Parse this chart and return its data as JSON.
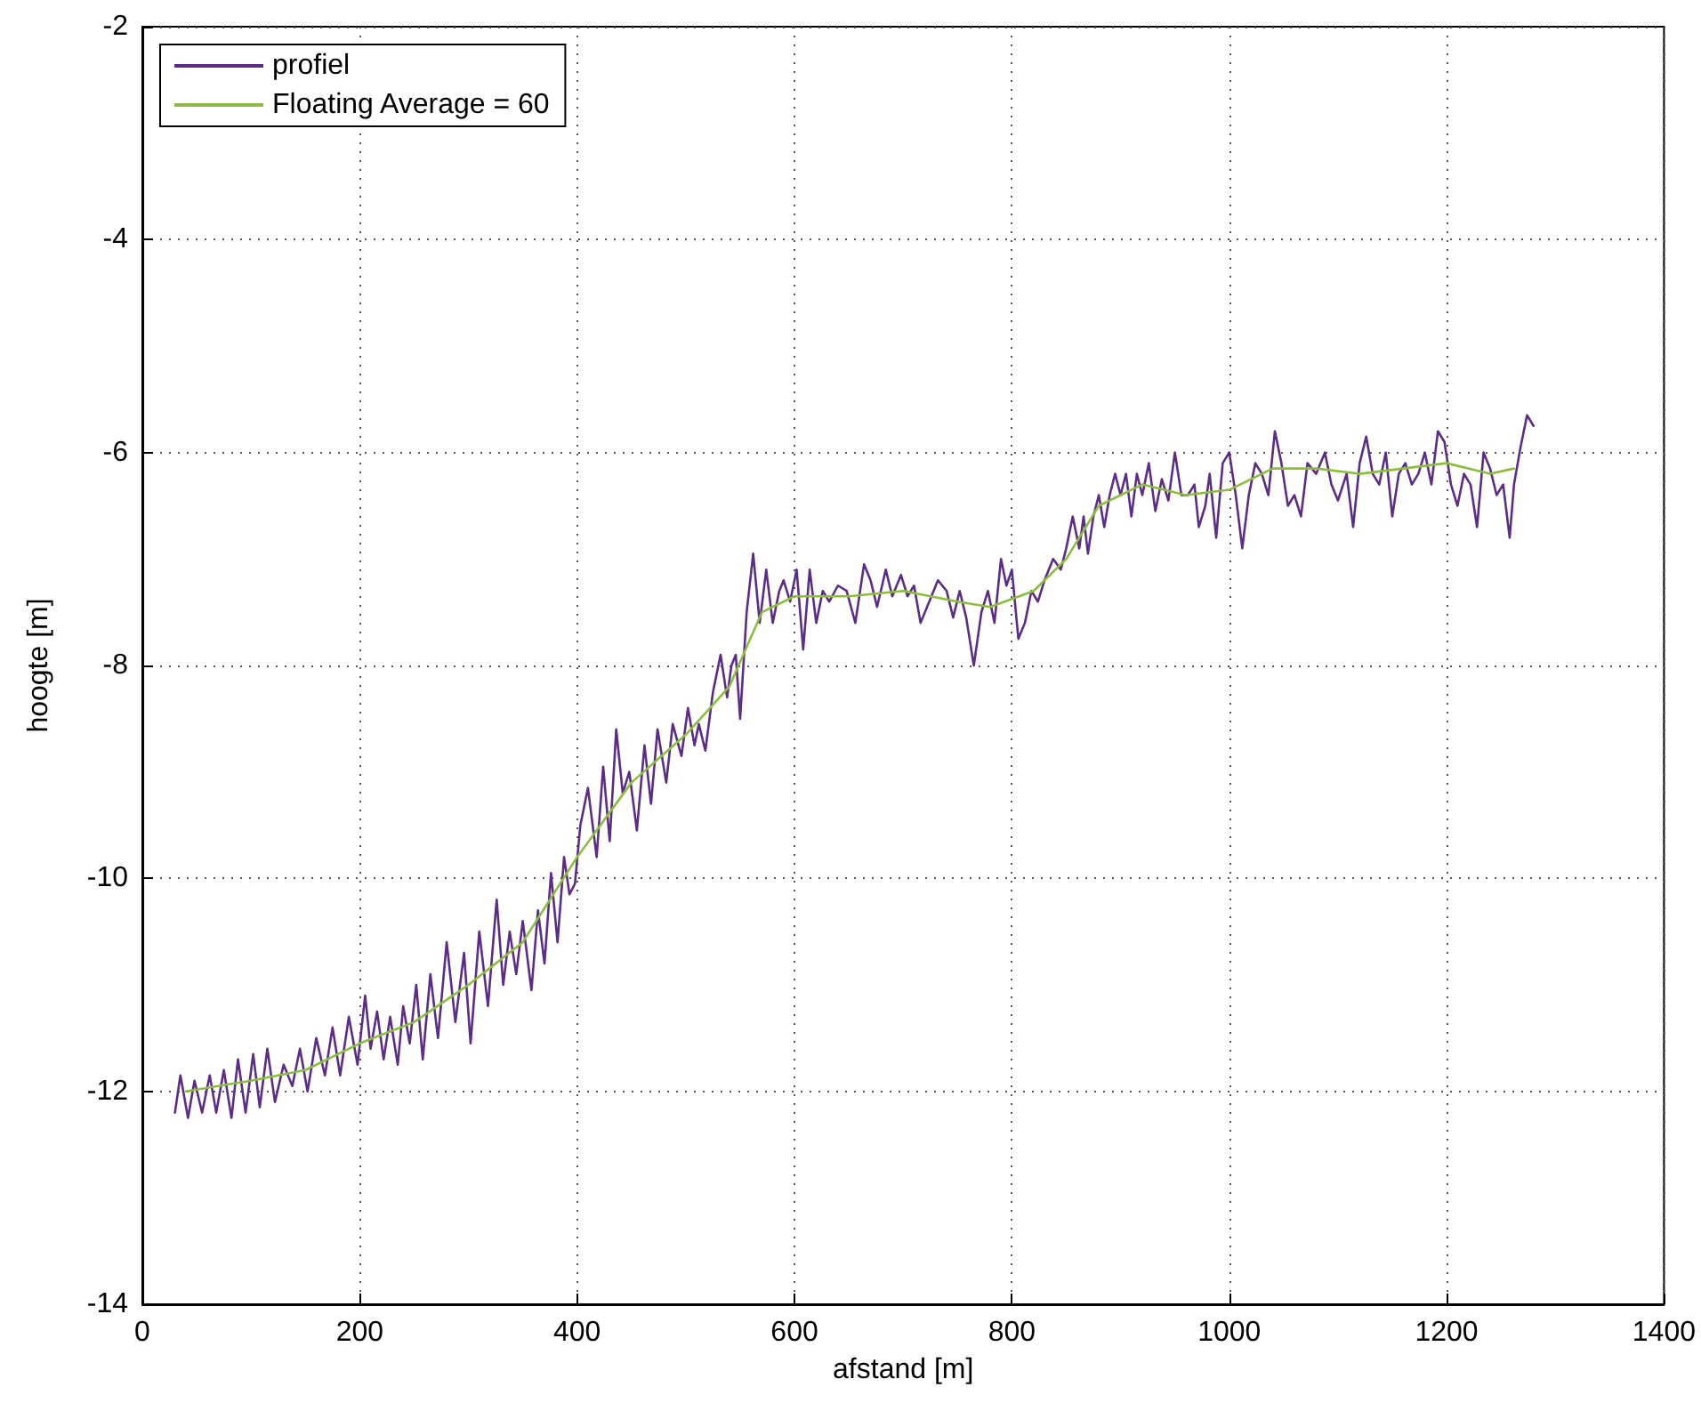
{
  "chart_data": {
    "type": "line",
    "xlabel": "afstand [m]",
    "ylabel": "hoogte [m]",
    "xlim": [
      0,
      1400
    ],
    "xticks": [
      0,
      200,
      400,
      600,
      800,
      1000,
      1200,
      1400
    ],
    "ylim": [
      -14,
      -2
    ],
    "yticks": [
      -14,
      -12,
      -10,
      -8,
      -6,
      -4,
      -2
    ],
    "grid": true,
    "legend": "top left",
    "marker": "none",
    "line_style": "solid",
    "series": [
      {
        "name": "profiel",
        "color": "#5b2d86",
        "x": [
          30,
          35,
          42,
          48,
          55,
          62,
          68,
          75,
          82,
          88,
          95,
          102,
          108,
          115,
          122,
          130,
          138,
          145,
          152,
          160,
          168,
          175,
          182,
          190,
          198,
          205,
          210,
          216,
          222,
          228,
          235,
          240,
          246,
          252,
          258,
          265,
          272,
          280,
          288,
          296,
          302,
          310,
          318,
          326,
          332,
          338,
          344,
          350,
          358,
          364,
          370,
          376,
          382,
          388,
          393,
          398,
          403,
          410,
          418,
          424,
          430,
          436,
          442,
          448,
          455,
          462,
          468,
          474,
          482,
          488,
          496,
          502,
          508,
          512,
          518,
          525,
          532,
          538,
          542,
          546,
          550,
          556,
          562,
          568,
          574,
          580,
          586,
          590,
          596,
          602,
          608,
          614,
          620,
          626,
          632,
          640,
          648,
          656,
          664,
          670,
          676,
          684,
          690,
          698,
          704,
          710,
          716,
          724,
          732,
          740,
          746,
          752,
          758,
          765,
          772,
          778,
          784,
          790,
          795,
          800,
          806,
          812,
          818,
          824,
          830,
          838,
          845,
          850,
          856,
          862,
          866,
          870,
          875,
          880,
          885,
          890,
          895,
          900,
          905,
          910,
          915,
          920,
          926,
          932,
          938,
          944,
          950,
          956,
          962,
          968,
          972,
          978,
          982,
          988,
          994,
          1000,
          1006,
          1012,
          1018,
          1024,
          1030,
          1036,
          1042,
          1048,
          1054,
          1060,
          1066,
          1072,
          1080,
          1088,
          1094,
          1100,
          1108,
          1114,
          1120,
          1126,
          1132,
          1138,
          1144,
          1150,
          1156,
          1162,
          1168,
          1174,
          1180,
          1186,
          1192,
          1198,
          1204,
          1210,
          1216,
          1222,
          1228,
          1234,
          1240,
          1246,
          1252,
          1258,
          1262,
          1268,
          1274,
          1280
        ],
        "values": [
          -12.2,
          -11.85,
          -12.25,
          -11.9,
          -12.2,
          -11.85,
          -12.2,
          -11.8,
          -12.25,
          -11.7,
          -12.2,
          -11.65,
          -12.15,
          -11.6,
          -12.1,
          -11.75,
          -11.95,
          -11.6,
          -12.0,
          -11.5,
          -11.85,
          -11.4,
          -11.85,
          -11.3,
          -11.75,
          -11.1,
          -11.6,
          -11.25,
          -11.7,
          -11.3,
          -11.75,
          -11.2,
          -11.55,
          -11.0,
          -11.7,
          -10.9,
          -11.5,
          -10.6,
          -11.35,
          -10.7,
          -11.55,
          -10.5,
          -11.2,
          -10.2,
          -11.0,
          -10.5,
          -10.9,
          -10.4,
          -11.05,
          -10.3,
          -10.8,
          -9.95,
          -10.6,
          -9.8,
          -10.15,
          -10.05,
          -9.5,
          -9.15,
          -9.8,
          -8.95,
          -9.65,
          -8.6,
          -9.2,
          -9.0,
          -9.55,
          -8.75,
          -9.3,
          -8.6,
          -9.1,
          -8.55,
          -8.85,
          -8.4,
          -8.75,
          -8.55,
          -8.8,
          -8.25,
          -7.9,
          -8.3,
          -8.0,
          -7.9,
          -8.5,
          -7.5,
          -6.95,
          -7.6,
          -7.1,
          -7.6,
          -7.3,
          -7.2,
          -7.4,
          -7.1,
          -7.85,
          -7.1,
          -7.6,
          -7.3,
          -7.4,
          -7.25,
          -7.3,
          -7.6,
          -7.05,
          -7.2,
          -7.45,
          -7.1,
          -7.35,
          -7.15,
          -7.35,
          -7.25,
          -7.6,
          -7.4,
          -7.2,
          -7.3,
          -7.55,
          -7.3,
          -7.55,
          -8.0,
          -7.5,
          -7.3,
          -7.6,
          -7.0,
          -7.25,
          -7.1,
          -7.75,
          -7.6,
          -7.3,
          -7.4,
          -7.2,
          -7.0,
          -7.1,
          -6.9,
          -6.6,
          -6.9,
          -6.6,
          -6.95,
          -6.6,
          -6.4,
          -6.7,
          -6.4,
          -6.2,
          -6.4,
          -6.2,
          -6.6,
          -6.2,
          -6.4,
          -6.1,
          -6.55,
          -6.25,
          -6.45,
          -6.0,
          -6.4,
          -6.4,
          -6.3,
          -6.7,
          -6.5,
          -6.2,
          -6.8,
          -6.1,
          -6.0,
          -6.4,
          -6.9,
          -6.4,
          -6.1,
          -6.2,
          -6.4,
          -5.8,
          -6.1,
          -6.5,
          -6.4,
          -6.6,
          -6.1,
          -6.2,
          -6.0,
          -6.3,
          -6.45,
          -6.2,
          -6.7,
          -6.1,
          -5.85,
          -6.2,
          -6.3,
          -6.0,
          -6.6,
          -6.2,
          -6.1,
          -6.3,
          -6.2,
          -6.0,
          -6.3,
          -5.8,
          -5.9,
          -6.3,
          -6.5,
          -6.2,
          -6.3,
          -6.7,
          -6.0,
          -6.15,
          -6.4,
          -6.3,
          -6.8,
          -6.3,
          -5.95,
          -5.65,
          -5.75
        ]
      },
      {
        "name": "Floating Average = 60",
        "color": "#8cbd3f",
        "x": [
          40,
          100,
          150,
          200,
          250,
          300,
          350,
          400,
          450,
          500,
          540,
          570,
          600,
          650,
          700,
          750,
          780,
          820,
          850,
          880,
          920,
          960,
          1000,
          1040,
          1080,
          1120,
          1160,
          1200,
          1240,
          1262
        ],
        "values": [
          -12.0,
          -11.9,
          -11.8,
          -11.55,
          -11.35,
          -11.0,
          -10.6,
          -9.8,
          -9.1,
          -8.65,
          -8.2,
          -7.5,
          -7.35,
          -7.35,
          -7.3,
          -7.4,
          -7.45,
          -7.3,
          -7.0,
          -6.5,
          -6.3,
          -6.4,
          -6.35,
          -6.15,
          -6.15,
          -6.2,
          -6.15,
          -6.1,
          -6.2,
          -6.15
        ]
      }
    ]
  }
}
